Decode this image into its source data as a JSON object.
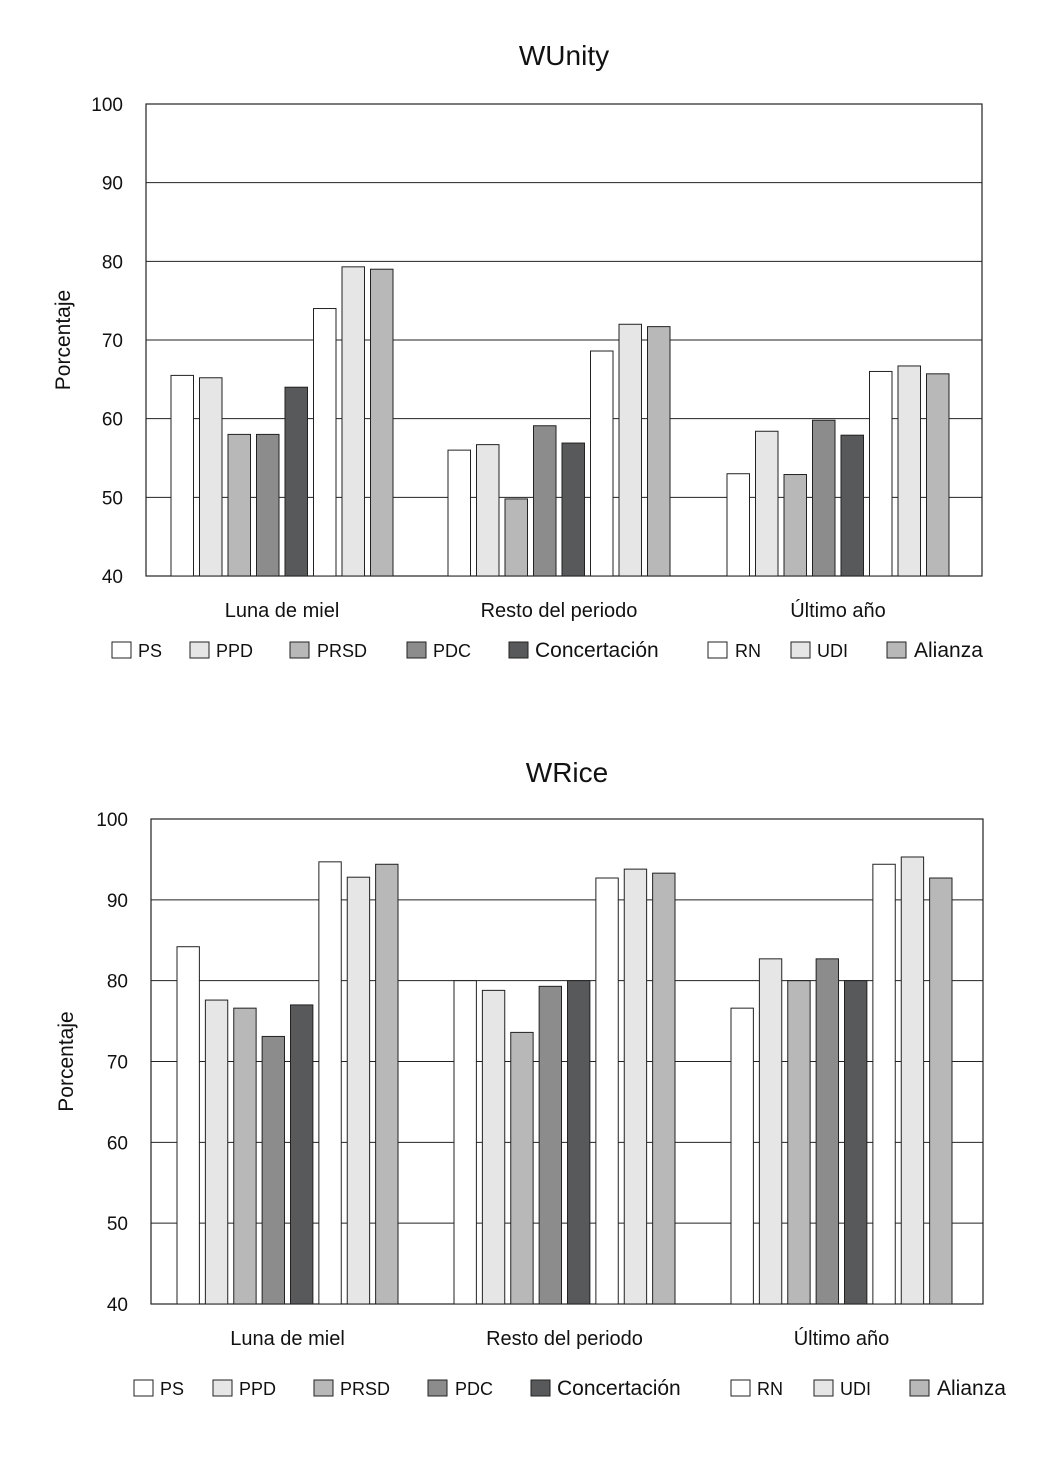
{
  "chart_data": [
    {
      "type": "bar",
      "title": "WUnity",
      "xlabel": "",
      "ylabel": "Porcentaje",
      "ylim": [
        40,
        100
      ],
      "yticks": [
        40,
        50,
        60,
        70,
        80,
        90,
        100
      ],
      "grid": true,
      "legend_position": "bottom",
      "categories": [
        "Luna de miel",
        "Resto del periodo",
        "Último año"
      ],
      "series": [
        {
          "name": "PS",
          "color": "#ffffff",
          "values": [
            65.5,
            56,
            53
          ]
        },
        {
          "name": "PPD",
          "color": "#e6e6e6",
          "values": [
            65.2,
            56.7,
            58.4
          ]
        },
        {
          "name": "PRSD",
          "color": "#b8b8b8",
          "values": [
            58,
            49.8,
            52.9
          ]
        },
        {
          "name": "PDC",
          "color": "#8c8c8c",
          "values": [
            58,
            59.1,
            59.8
          ]
        },
        {
          "name": "Concertación",
          "color": "#58595b",
          "values": [
            64,
            56.9,
            57.9
          ]
        },
        {
          "name": "RN",
          "color": "#ffffff",
          "values": [
            74,
            68.6,
            66
          ]
        },
        {
          "name": "UDI",
          "color": "#e6e6e6",
          "values": [
            79.3,
            72,
            66.7
          ]
        },
        {
          "name": "Alianza",
          "color": "#b8b8b8",
          "values": [
            79,
            71.7,
            65.7
          ]
        }
      ]
    },
    {
      "type": "bar",
      "title": "WRice",
      "xlabel": "",
      "ylabel": "Porcentaje",
      "ylim": [
        40,
        100
      ],
      "yticks": [
        40,
        50,
        60,
        70,
        80,
        90,
        100
      ],
      "grid": true,
      "legend_position": "bottom",
      "categories": [
        "Luna de miel",
        "Resto del periodo",
        "Último año"
      ],
      "series": [
        {
          "name": "PS",
          "color": "#ffffff",
          "values": [
            84.2,
            80,
            76.6
          ]
        },
        {
          "name": "PPD",
          "color": "#e6e6e6",
          "values": [
            77.6,
            78.8,
            82.7
          ]
        },
        {
          "name": "PRSD",
          "color": "#b8b8b8",
          "values": [
            76.6,
            73.6,
            80
          ]
        },
        {
          "name": "PDC",
          "color": "#8c8c8c",
          "values": [
            73.1,
            79.3,
            82.7
          ]
        },
        {
          "name": "Concertación",
          "color": "#58595b",
          "values": [
            77,
            80,
            80
          ]
        },
        {
          "name": "RN",
          "color": "#ffffff",
          "values": [
            94.7,
            92.7,
            94.4
          ]
        },
        {
          "name": "UDI",
          "color": "#e6e6e6",
          "values": [
            92.8,
            93.8,
            95.3
          ]
        },
        {
          "name": "Alianza",
          "color": "#b8b8b8",
          "values": [
            94.4,
            93.3,
            92.7
          ]
        }
      ]
    }
  ]
}
